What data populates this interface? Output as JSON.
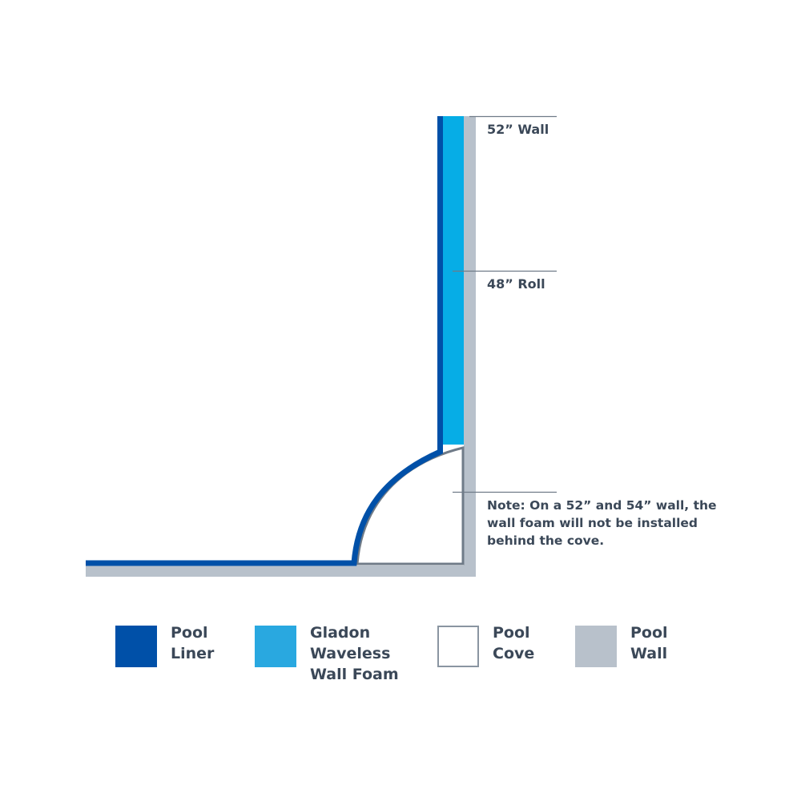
{
  "annotations": {
    "wall_height": "52” Wall",
    "roll_height": "48” Roll",
    "note": "Note: On a 52” and 54” wall, the\nwall foam will not be installed\nbehind the cove."
  },
  "legend": [
    {
      "label": "Pool\nLiner",
      "color": "#0050a8"
    },
    {
      "label": "Gladon\nWaveless\nWall Foam",
      "color": "#29a8e0"
    },
    {
      "label": "Pool\nCove",
      "color": "#ffffff"
    },
    {
      "label": "Pool\nWall",
      "color": "#b8c1cb"
    }
  ],
  "colors": {
    "liner": "#0050a8",
    "foam": "#06ade6",
    "wall": "#b8c1cb",
    "cove_outline": "#6f7b88",
    "leader_line": "#6f7b88",
    "text": "#3b4858"
  }
}
